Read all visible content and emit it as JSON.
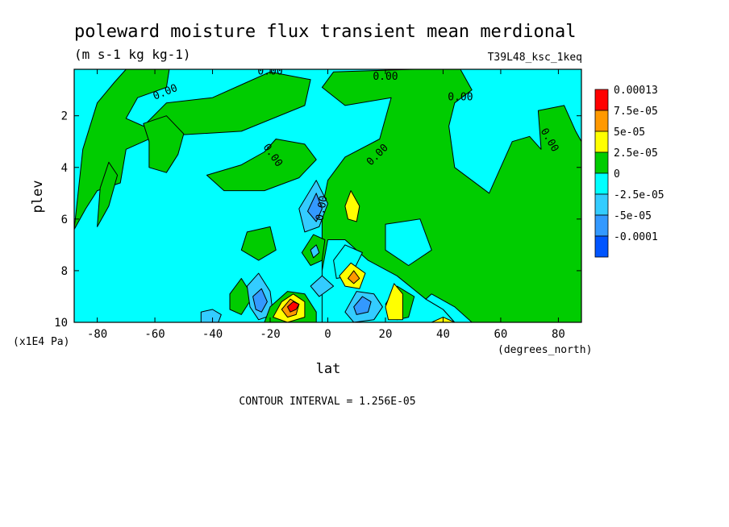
{
  "chart_data": {
    "type": "heatmap",
    "title": "poleward moisture flux transient mean merdional",
    "units": "(m s-1 kg kg-1)",
    "run_label": "T39L48_ksc_1keq",
    "xlabel": "lat",
    "xunits": "(degrees_north)",
    "ylabel": "plev",
    "yunits": "(x1E4 Pa)",
    "xlim": [
      -88,
      88
    ],
    "ylim": [
      0.2,
      10
    ],
    "y_inverted": true,
    "x_ticks": [
      -80,
      -60,
      -40,
      -20,
      0,
      20,
      40,
      60,
      80
    ],
    "y_ticks": [
      2,
      4,
      6,
      8,
      10
    ],
    "contour_interval_text": "CONTOUR INTERVAL = 1.256E-05",
    "contour_label": "0.00",
    "colorbar": {
      "labels": [
        "0.00013",
        "7.5e-05",
        "5e-05",
        "2.5e-05",
        "0",
        "-2.5e-05",
        "-5e-05",
        "-0.0001"
      ],
      "colors": [
        "#ff0000",
        "#ff9900",
        "#ffff00",
        "#00cc00",
        "#00ffff",
        "#33ccff",
        "#3399ff",
        "#0055ff"
      ]
    },
    "background_color": "#00ffff",
    "regions": [
      {
        "color": "#00cc00",
        "points": [
          [
            -88,
            6.4
          ],
          [
            -85,
            3.3
          ],
          [
            -80,
            1.5
          ],
          [
            -74,
            0.7
          ],
          [
            -70,
            0.2
          ],
          [
            -55,
            0.2
          ],
          [
            -56,
            0.9
          ],
          [
            -66,
            1.3
          ],
          [
            -70,
            2.1
          ],
          [
            -64,
            2.4
          ],
          [
            -56,
            1.5
          ],
          [
            -40,
            1.3
          ],
          [
            -28,
            0.7
          ],
          [
            -20,
            0.3
          ],
          [
            -6,
            0.6
          ],
          [
            -8,
            1.6
          ],
          [
            -30,
            2.6
          ],
          [
            -60,
            2.8
          ],
          [
            -70,
            3.3
          ],
          [
            -72,
            4.6
          ],
          [
            -80,
            4.9
          ],
          [
            -84,
            5.6
          ]
        ]
      },
      {
        "color": "#00cc00",
        "points": [
          [
            -80,
            6.3
          ],
          [
            -76,
            5.5
          ],
          [
            -73,
            4.3
          ],
          [
            -76,
            3.8
          ],
          [
            -79,
            4.8
          ]
        ]
      },
      {
        "color": "#00cc00",
        "points": [
          [
            -64,
            2.3
          ],
          [
            -56,
            2.0
          ],
          [
            -50,
            2.7
          ],
          [
            -52,
            3.5
          ],
          [
            -56,
            4.2
          ],
          [
            -62,
            4.0
          ],
          [
            -62,
            3.0
          ]
        ]
      },
      {
        "color": "#00cc00",
        "points": [
          [
            -42,
            4.3
          ],
          [
            -30,
            3.9
          ],
          [
            -22,
            3.4
          ],
          [
            -18,
            2.9
          ],
          [
            -8,
            3.1
          ],
          [
            -4,
            3.7
          ],
          [
            -10,
            4.4
          ],
          [
            -22,
            4.9
          ],
          [
            -36,
            4.9
          ]
        ]
      },
      {
        "color": "#00cc00",
        "points": [
          [
            -28,
            6.5
          ],
          [
            -20,
            6.3
          ],
          [
            -18,
            7.2
          ],
          [
            -24,
            7.6
          ],
          [
            -30,
            7.2
          ]
        ]
      },
      {
        "color": "#00cc00",
        "points": [
          [
            -34,
            8.9
          ],
          [
            -30,
            8.3
          ],
          [
            -26,
            9.0
          ],
          [
            -30,
            9.7
          ],
          [
            -34,
            9.5
          ]
        ]
      },
      {
        "color": "#00cc00",
        "points": [
          [
            -2,
            10
          ],
          [
            -2,
            5.6
          ],
          [
            0,
            4.5
          ],
          [
            6,
            3.6
          ],
          [
            18,
            2.9
          ],
          [
            22,
            1.3
          ],
          [
            6,
            1.6
          ],
          [
            -2,
            0.9
          ],
          [
            2,
            0.3
          ],
          [
            30,
            0.2
          ],
          [
            46,
            0.2
          ],
          [
            50,
            1.0
          ],
          [
            44,
            1.5
          ],
          [
            42,
            2.4
          ],
          [
            44,
            4.0
          ],
          [
            56,
            5.0
          ],
          [
            64,
            3.0
          ],
          [
            70,
            2.8
          ],
          [
            74,
            3.3
          ],
          [
            73,
            1.8
          ],
          [
            82,
            1.6
          ],
          [
            86,
            2.6
          ],
          [
            88,
            3.0
          ],
          [
            88,
            10
          ],
          [
            44,
            10
          ],
          [
            40,
            9.5
          ],
          [
            34,
            9.1
          ],
          [
            24,
            8.2
          ],
          [
            14,
            7.6
          ],
          [
            6,
            6.8
          ],
          [
            0,
            6.8
          ],
          [
            -2,
            8.0
          ]
        ]
      },
      {
        "color": "#00ffff",
        "points": [
          [
            20,
            6.2
          ],
          [
            32,
            6.0
          ],
          [
            36,
            7.2
          ],
          [
            28,
            7.8
          ],
          [
            20,
            7.2
          ]
        ]
      },
      {
        "color": "#00ffff",
        "points": [
          [
            44,
            10
          ],
          [
            40,
            9.5
          ],
          [
            34,
            9.1
          ],
          [
            36,
            8.9
          ],
          [
            44,
            9.4
          ],
          [
            50,
            10
          ]
        ]
      },
      {
        "color": "#00ffff",
        "points": [
          [
            2,
            7.6
          ],
          [
            6,
            7.0
          ],
          [
            12,
            7.3
          ],
          [
            8,
            8.2
          ],
          [
            3,
            8.3
          ]
        ]
      },
      {
        "color": "#00cc00",
        "points": [
          [
            24,
            9.9
          ],
          [
            20,
            9.3
          ],
          [
            24,
            8.6
          ],
          [
            30,
            9.0
          ],
          [
            28,
            9.8
          ]
        ]
      },
      {
        "color": "#33ccff",
        "points": [
          [
            -10,
            5.6
          ],
          [
            -4,
            4.5
          ],
          [
            0,
            5.4
          ],
          [
            -3,
            6.3
          ],
          [
            -8,
            6.5
          ]
        ]
      },
      {
        "color": "#3399ff",
        "points": [
          [
            -7,
            5.7
          ],
          [
            -4,
            5.0
          ],
          [
            -2,
            5.6
          ],
          [
            -4,
            6.1
          ]
        ]
      },
      {
        "color": "#00cc00",
        "points": [
          [
            -9,
            7.3
          ],
          [
            -5,
            6.6
          ],
          [
            -1,
            6.8
          ],
          [
            -2,
            7.6
          ],
          [
            -6,
            7.8
          ]
        ]
      },
      {
        "color": "#33ccff",
        "points": [
          [
            -6,
            7.2
          ],
          [
            -4,
            7.0
          ],
          [
            -3,
            7.3
          ],
          [
            -5,
            7.5
          ]
        ]
      },
      {
        "color": "#33ccff",
        "points": [
          [
            -28,
            8.6
          ],
          [
            -24,
            8.1
          ],
          [
            -20,
            8.8
          ],
          [
            -19,
            9.7
          ],
          [
            -24,
            9.9
          ],
          [
            -27,
            9.4
          ]
        ]
      },
      {
        "color": "#3399ff",
        "points": [
          [
            -26,
            9.0
          ],
          [
            -23,
            8.7
          ],
          [
            -21,
            9.2
          ],
          [
            -23,
            9.6
          ],
          [
            -25,
            9.5
          ]
        ]
      },
      {
        "color": "#33ccff",
        "points": [
          [
            -6,
            8.6
          ],
          [
            -2,
            8.2
          ],
          [
            2,
            8.6
          ],
          [
            -3,
            9.0
          ]
        ]
      },
      {
        "color": "#33ccff",
        "points": [
          [
            -44,
            9.6
          ],
          [
            -40,
            9.5
          ],
          [
            -37,
            9.7
          ],
          [
            -38,
            10
          ],
          [
            -44,
            10
          ]
        ]
      },
      {
        "color": "#33ccff",
        "points": [
          [
            6,
            9.6
          ],
          [
            10,
            8.8
          ],
          [
            16,
            8.9
          ],
          [
            19,
            9.4
          ],
          [
            16,
            9.9
          ],
          [
            9,
            10
          ]
        ]
      },
      {
        "color": "#3399ff",
        "points": [
          [
            9,
            9.4
          ],
          [
            12,
            9.0
          ],
          [
            15,
            9.2
          ],
          [
            14,
            9.6
          ],
          [
            10,
            9.7
          ]
        ]
      },
      {
        "color": "#00cc00",
        "points": [
          [
            -22,
            10
          ],
          [
            -20,
            9.4
          ],
          [
            -14,
            8.8
          ],
          [
            -8,
            8.9
          ],
          [
            -4,
            9.6
          ],
          [
            -4,
            10
          ]
        ]
      },
      {
        "color": "#ffff00",
        "points": [
          [
            -19,
            9.8
          ],
          [
            -16,
            9.2
          ],
          [
            -12,
            8.9
          ],
          [
            -8,
            9.2
          ],
          [
            -8,
            9.8
          ],
          [
            -14,
            10
          ]
        ]
      },
      {
        "color": "#ff9900",
        "points": [
          [
            -16,
            9.5
          ],
          [
            -13,
            9.1
          ],
          [
            -10,
            9.3
          ],
          [
            -11,
            9.7
          ],
          [
            -14,
            9.8
          ]
        ]
      },
      {
        "color": "#ff0000",
        "points": [
          [
            -14,
            9.4
          ],
          [
            -12,
            9.2
          ],
          [
            -10,
            9.3
          ],
          [
            -11,
            9.5
          ],
          [
            -13,
            9.6
          ]
        ]
      },
      {
        "color": "#ffff00",
        "points": [
          [
            6,
            5.5
          ],
          [
            8,
            4.9
          ],
          [
            11,
            5.5
          ],
          [
            10,
            6.1
          ],
          [
            7,
            6.0
          ]
        ]
      },
      {
        "color": "#ffff00",
        "points": [
          [
            4,
            8.2
          ],
          [
            8,
            7.7
          ],
          [
            13,
            8.1
          ],
          [
            11,
            8.7
          ],
          [
            6,
            8.6
          ]
        ]
      },
      {
        "color": "#ff9900",
        "points": [
          [
            7,
            8.3
          ],
          [
            9,
            8.0
          ],
          [
            11,
            8.3
          ],
          [
            9,
            8.5
          ]
        ]
      },
      {
        "color": "#ffff00",
        "points": [
          [
            20,
            9.4
          ],
          [
            23,
            8.5
          ],
          [
            26,
            8.9
          ],
          [
            26,
            9.9
          ],
          [
            21,
            9.9
          ]
        ]
      },
      {
        "color": "#ffff00",
        "points": [
          [
            36,
            10
          ],
          [
            40,
            9.8
          ],
          [
            44,
            10
          ]
        ]
      }
    ],
    "label_positions": [
      [
        -20,
        0.4,
        0
      ],
      [
        -56,
        1.2,
        -22
      ],
      [
        20,
        0.6,
        0
      ],
      [
        46,
        1.4,
        0
      ],
      [
        -20,
        3.6,
        55
      ],
      [
        18,
        3.6,
        -45
      ],
      [
        76,
        3.0,
        60
      ],
      [
        -1,
        5.6,
        -80
      ]
    ]
  }
}
